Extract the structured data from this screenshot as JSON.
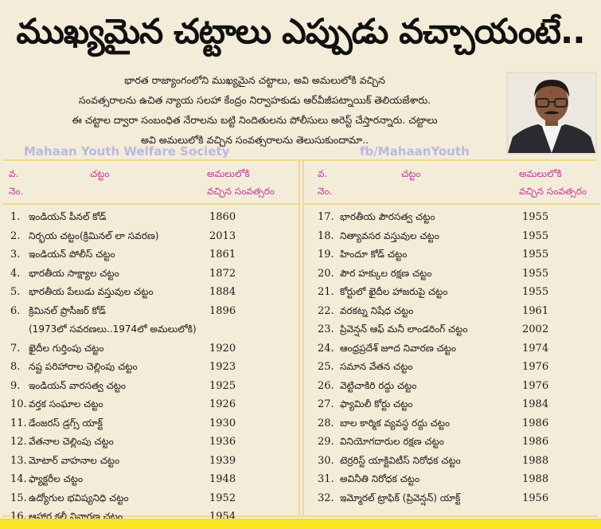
{
  "headline": "ముఖ్యమైన చట్టాలు ఎప్పుడు వచ్చాయంటే..",
  "intro": [
    "భారత రాజ్యాంగంలోని ముఖ్యమైన చట్టాలు, అవి అమలులోకి వచ్చిన",
    "సంవత్సరాలను ఉచిత న్యాయ సలహా కేంద్రం నిర్వాహకుడు ఆర్‌వీజీపట్నాయిక్ తెలియజేశారు.",
    "ఈ చట్టాల ద్వారా సంబంధిత నేరాలను బట్టి నిందితులను పోలీసులు అరెస్ట్ చేస్తారన్నారు. చట్టాలు",
    "అవి అమలులోకి వచ్చిన సంవత్సరాలను తెలుసుకుందామా.."
  ],
  "photo": {
    "alt": "portrait-of-legal-advisor"
  },
  "watermarks": {
    "left": "Mahaan Youth Welfare Society",
    "right": "fb/MahaanYouth"
  },
  "table": {
    "headers": {
      "no_line1": "వ.",
      "no_line2": "నెం.",
      "name": "చట్టం",
      "year_line1": "అమలులోకి",
      "year_line2": "వచ్చిన సంవత్సరం"
    },
    "left": [
      {
        "no": "1.",
        "name": "ఇండియన్ పీనల్ కోడ్",
        "year": "1860"
      },
      {
        "no": "2.",
        "name": "నిర్భయ చట్టం(క్రిమినల్ లా సవరణ)",
        "year": "2013"
      },
      {
        "no": "3.",
        "name": "ఇండియన్ పోలీస్ చట్టం",
        "year": "1861"
      },
      {
        "no": "4.",
        "name": "భారతీయ సాక్ష్యాల చట్టం",
        "year": "1872"
      },
      {
        "no": "5.",
        "name": "భారతీయ పేలుడు వస్తువుల చట్టం",
        "year": "1884"
      },
      {
        "no": "6.",
        "name": "క్రిమినల్ ప్రొసీజర్ కోడ్",
        "year": "1896"
      },
      {
        "no": "",
        "name": "(1973లో సవరణలు..1974లో అమలులోకి)",
        "year": ""
      },
      {
        "no": "7.",
        "name": "ఖైదీల గుర్తింపు చట్టం",
        "year": "1920"
      },
      {
        "no": "8.",
        "name": "నష్ట పరిహారాల చెల్లింపు చట్టం",
        "year": "1923"
      },
      {
        "no": "9.",
        "name": "ఇండియన్ వారసత్వ చట్టం",
        "year": "1925"
      },
      {
        "no": "10.",
        "name": "వర్తక సంఘాల చట్టం",
        "year": "1926"
      },
      {
        "no": "11.",
        "name": "డేంజరస్ డ్రగ్స్ యాక్ట్",
        "year": "1930"
      },
      {
        "no": "12.",
        "name": "వేతనాల చెల్లింపు చట్టం",
        "year": "1936"
      },
      {
        "no": "13.",
        "name": "మోటార్ వాహనాల చట్టం",
        "year": "1939"
      },
      {
        "no": "14.",
        "name": "ఫ్యాక్టరీల చట్టం",
        "year": "1948"
      },
      {
        "no": "15.",
        "name": "ఉద్యోగుల భవిష్యనిధి చట్టం",
        "year": "1952"
      },
      {
        "no": "16.",
        "name": "ఆహార కల్తీ నివారణ చట్టం",
        "year": "1954"
      }
    ],
    "right": [
      {
        "no": "17.",
        "name": "భారతీయ పౌరసత్వ చట్టం",
        "year": "1955"
      },
      {
        "no": "18.",
        "name": "నిత్యావసర వస్తువుల చట్టం",
        "year": "1955"
      },
      {
        "no": "19.",
        "name": "హిందూ కోడ్ చట్టం",
        "year": "1955"
      },
      {
        "no": "20.",
        "name": "పౌర హక్కుల రక్షణ చట్టం",
        "year": "1955"
      },
      {
        "no": "21.",
        "name": "కోర్టులో ఖైదీల హాజరుపై చట్టం",
        "year": "1955"
      },
      {
        "no": "22.",
        "name": "వరకట్న నిషేధ చట్టం",
        "year": "1961"
      },
      {
        "no": "23.",
        "name": "ప్రివెన్షన్ ఆఫ్ మనీ లాండరింగ్ చట్టం",
        "year": "2002"
      },
      {
        "no": "24.",
        "name": "ఆంధ్రప్రదేశ్ జూద నివారణ చట్టం",
        "year": "1974"
      },
      {
        "no": "25.",
        "name": "సమాన వేతన చట్టం",
        "year": "1976"
      },
      {
        "no": "26.",
        "name": "వెట్టిచాకిరి రద్దు చట్టం",
        "year": "1976"
      },
      {
        "no": "27.",
        "name": "ఫ్యామిలీ కోర్టు చట్టం",
        "year": "1984"
      },
      {
        "no": "28.",
        "name": "బాల కార్మిక వ్యవస్థ రద్దు చట్టం",
        "year": "1986"
      },
      {
        "no": "29.",
        "name": "వినియోగదారుల రక్షణ చట్టం",
        "year": "1986"
      },
      {
        "no": "30.",
        "name": "టెర్రరిస్ట్ యాక్టివిటీస్ నిరోధక చట్టం",
        "year": "1988"
      },
      {
        "no": "31.",
        "name": "అవినీతి నిరోధక చట్టం",
        "year": "1988"
      },
      {
        "no": "32.",
        "name": "ఇమ్మోరల్ ట్రాఫిక్ (ప్రివెన్షన్) యాక్ట్",
        "year": "1956"
      }
    ]
  },
  "colors": {
    "background": "#f3ecd9",
    "header_text": "#c23c9b",
    "border": "#f2d88f",
    "watermark": "#b8b6e0",
    "footer_bar": "#fbe626"
  }
}
